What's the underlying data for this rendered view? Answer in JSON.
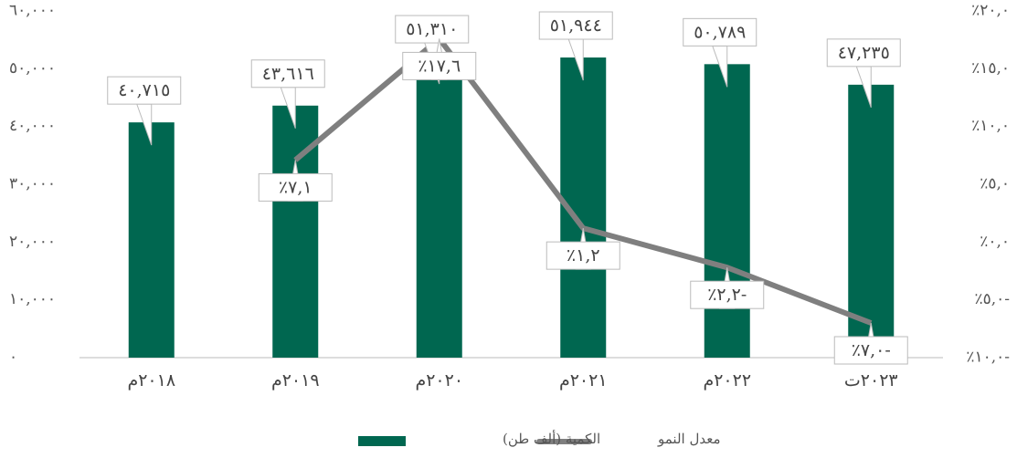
{
  "chart_data": {
    "type": "bar_line",
    "categories": [
      "٢٠١٨م",
      "٢٠١٩م",
      "٢٠٢٠م",
      "٢٠٢١م",
      "٢٠٢٢م",
      "٢٠٢٣ت"
    ],
    "series": [
      {
        "name": "الكمية (ألف طن)",
        "color": "#006750",
        "type": "bar",
        "values": [
          40715,
          43616,
          51310,
          51944,
          50789,
          47235
        ],
        "value_labels": [
          "٤٠,٧١٥",
          "٤٣,٦١٦",
          "٥١,٣١٠",
          "٥١,٩٤٤",
          "٥٠,٧٨٩",
          "٤٧,٢٣٥"
        ]
      },
      {
        "name": "معدل النمو",
        "color": "#7f7f7f",
        "type": "line",
        "axis": "y2",
        "values": [
          null,
          7.1,
          17.6,
          1.2,
          -2.2,
          -7.0
        ],
        "value_labels": [
          null,
          "٪٧,١",
          "٪١٧,٦",
          "٪١,٢",
          "٪٢,٢-",
          "٪٧,٠-"
        ]
      }
    ],
    "ylim": [
      0,
      60000
    ],
    "yticks": [
      {
        "value": 0,
        "label": "٠"
      },
      {
        "value": 10000,
        "label": "١٠,٠٠٠"
      },
      {
        "value": 20000,
        "label": "٢٠,٠٠٠"
      },
      {
        "value": 30000,
        "label": "٣٠,٠٠٠"
      },
      {
        "value": 40000,
        "label": "٤٠,٠٠٠"
      },
      {
        "value": 50000,
        "label": "٥٠,٠٠٠"
      },
      {
        "value": 60000,
        "label": "٦٠,٠٠٠"
      }
    ],
    "y2lim": [
      -10,
      20
    ],
    "y2ticks": [
      {
        "value": -10,
        "label": "٪١٠,٠-"
      },
      {
        "value": -5,
        "label": "٪٥,٠-"
      },
      {
        "value": 0,
        "label": "٪٠,٠"
      },
      {
        "value": 5,
        "label": "٪٥,٠"
      },
      {
        "value": 10,
        "label": "٪١٠,٠"
      },
      {
        "value": 15,
        "label": "٪١٥,٠"
      },
      {
        "value": 20,
        "label": "٪٢٠,٠"
      }
    ],
    "grid": false,
    "legend": "bottom"
  }
}
